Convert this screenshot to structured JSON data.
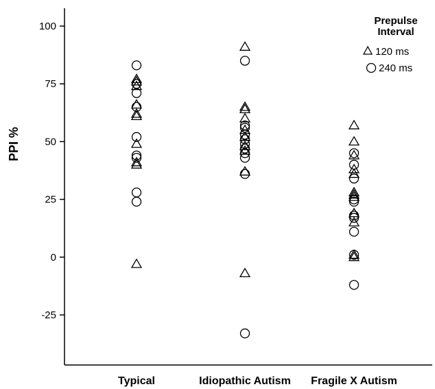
{
  "chart_data": {
    "type": "scatter",
    "ylabel": "PPI %",
    "xlabel": "",
    "ylim": [
      -47,
      108
    ],
    "yticks": [
      100,
      75,
      50,
      25,
      0,
      -25
    ],
    "categories": [
      "Typical",
      "Idiopathic Autism",
      "Fragile X Autism"
    ],
    "grid": false,
    "legend": {
      "title_line1": "Prepulse",
      "title_line2": "Interval",
      "placement": "top-right",
      "entries": [
        {
          "marker": "triangle",
          "label": "120 ms"
        },
        {
          "marker": "circle",
          "label": "240 ms"
        }
      ]
    },
    "series": [
      {
        "name": "120 ms",
        "marker": "triangle",
        "points": [
          {
            "category": "Typical",
            "y": 77
          },
          {
            "category": "Typical",
            "y": 76
          },
          {
            "category": "Typical",
            "y": 74
          },
          {
            "category": "Typical",
            "y": 66
          },
          {
            "category": "Typical",
            "y": 62
          },
          {
            "category": "Typical",
            "y": 61
          },
          {
            "category": "Typical",
            "y": 49
          },
          {
            "category": "Typical",
            "y": 41
          },
          {
            "category": "Typical",
            "y": 40
          },
          {
            "category": "Typical",
            "y": -3
          },
          {
            "category": "Idiopathic Autism",
            "y": 91
          },
          {
            "category": "Idiopathic Autism",
            "y": 65
          },
          {
            "category": "Idiopathic Autism",
            "y": 64
          },
          {
            "category": "Idiopathic Autism",
            "y": 60
          },
          {
            "category": "Idiopathic Autism",
            "y": 55
          },
          {
            "category": "Idiopathic Autism",
            "y": 52
          },
          {
            "category": "Idiopathic Autism",
            "y": 48
          },
          {
            "category": "Idiopathic Autism",
            "y": 46
          },
          {
            "category": "Idiopathic Autism",
            "y": 37
          },
          {
            "category": "Idiopathic Autism",
            "y": -7
          },
          {
            "category": "Fragile X Autism",
            "y": 57
          },
          {
            "category": "Fragile X Autism",
            "y": 50
          },
          {
            "category": "Fragile X Autism",
            "y": 44
          },
          {
            "category": "Fragile X Autism",
            "y": 38
          },
          {
            "category": "Fragile X Autism",
            "y": 36
          },
          {
            "category": "Fragile X Autism",
            "y": 28
          },
          {
            "category": "Fragile X Autism",
            "y": 27
          },
          {
            "category": "Fragile X Autism",
            "y": 26
          },
          {
            "category": "Fragile X Autism",
            "y": 19
          },
          {
            "category": "Fragile X Autism",
            "y": 15
          },
          {
            "category": "Fragile X Autism",
            "y": 1
          },
          {
            "category": "Fragile X Autism",
            "y": 0
          }
        ]
      },
      {
        "name": "240 ms",
        "marker": "circle",
        "points": [
          {
            "category": "Typical",
            "y": 83
          },
          {
            "category": "Typical",
            "y": 75
          },
          {
            "category": "Typical",
            "y": 71
          },
          {
            "category": "Typical",
            "y": 65
          },
          {
            "category": "Typical",
            "y": 52
          },
          {
            "category": "Typical",
            "y": 44
          },
          {
            "category": "Typical",
            "y": 43
          },
          {
            "category": "Typical",
            "y": 28
          },
          {
            "category": "Typical",
            "y": 24
          },
          {
            "category": "Idiopathic Autism",
            "y": 85
          },
          {
            "category": "Idiopathic Autism",
            "y": 57
          },
          {
            "category": "Idiopathic Autism",
            "y": 56
          },
          {
            "category": "Idiopathic Autism",
            "y": 53
          },
          {
            "category": "Idiopathic Autism",
            "y": 51
          },
          {
            "category": "Idiopathic Autism",
            "y": 49
          },
          {
            "category": "Idiopathic Autism",
            "y": 47
          },
          {
            "category": "Idiopathic Autism",
            "y": 45
          },
          {
            "category": "Idiopathic Autism",
            "y": 43
          },
          {
            "category": "Idiopathic Autism",
            "y": 36
          },
          {
            "category": "Idiopathic Autism",
            "y": -33
          },
          {
            "category": "Fragile X Autism",
            "y": 45
          },
          {
            "category": "Fragile X Autism",
            "y": 40
          },
          {
            "category": "Fragile X Autism",
            "y": 34
          },
          {
            "category": "Fragile X Autism",
            "y": 25
          },
          {
            "category": "Fragile X Autism",
            "y": 24
          },
          {
            "category": "Fragile X Autism",
            "y": 18
          },
          {
            "category": "Fragile X Autism",
            "y": 17
          },
          {
            "category": "Fragile X Autism",
            "y": 11
          },
          {
            "category": "Fragile X Autism",
            "y": 1
          },
          {
            "category": "Fragile X Autism",
            "y": -12
          }
        ]
      }
    ]
  }
}
